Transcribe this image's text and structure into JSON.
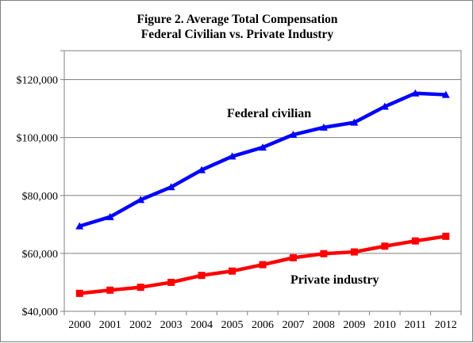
{
  "chart_data": {
    "type": "line",
    "title_line1": "Figure 2. Average Total Compensation",
    "title_line2": "Federal Civilian vs. Private Industry",
    "x": [
      "2000",
      "2001",
      "2002",
      "2003",
      "2004",
      "2005",
      "2006",
      "2007",
      "2008",
      "2009",
      "2010",
      "2011",
      "2012"
    ],
    "ylim": [
      40000,
      130000
    ],
    "yticks": [
      40000,
      60000,
      80000,
      100000,
      120000
    ],
    "ytick_labels": [
      "$40,000",
      "$60,000",
      "$80,000",
      "$100,000",
      "$120,000"
    ],
    "grid": true,
    "series": [
      {
        "name": "Federal civilian",
        "color": "#0000ff",
        "marker": "triangle",
        "values": [
          69400,
          72600,
          78500,
          82900,
          88800,
          93500,
          96600,
          101000,
          103500,
          105200,
          110700,
          115300,
          114800
        ]
      },
      {
        "name": "Private industry",
        "color": "#ff0000",
        "marker": "square",
        "values": [
          46200,
          47300,
          48300,
          50000,
          52400,
          53900,
          56100,
          58500,
          59900,
          60500,
          62500,
          64300,
          65900
        ]
      }
    ]
  }
}
